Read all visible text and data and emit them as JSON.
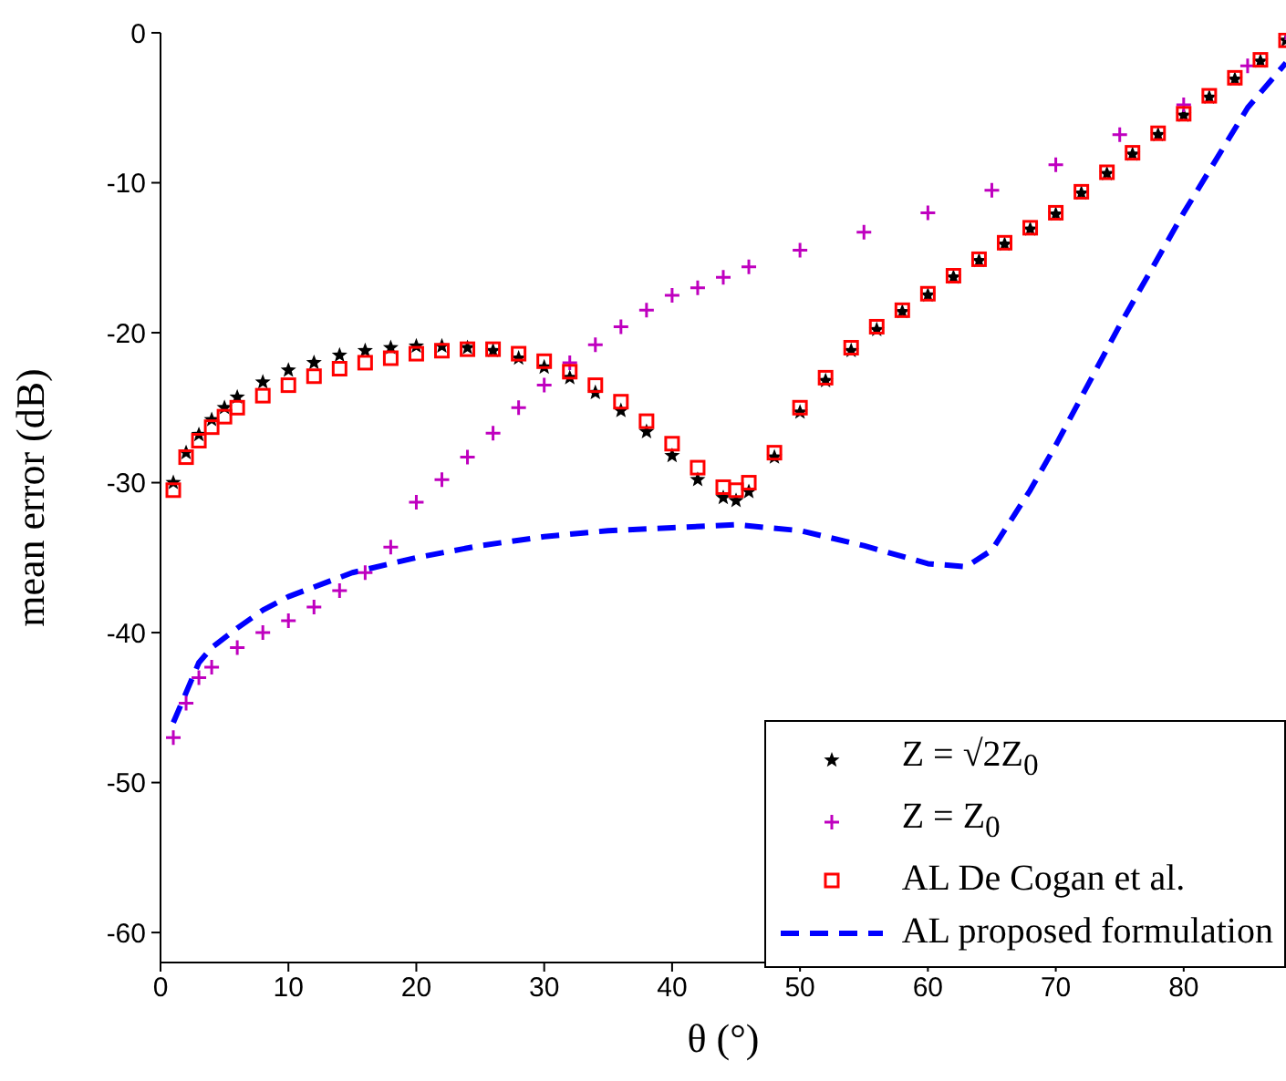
{
  "chart_data": {
    "type": "scatter",
    "xlabel": "θ (°)",
    "ylabel": "mean error (dB)",
    "xlim": [
      0,
      88
    ],
    "xticks": [
      0,
      10,
      20,
      30,
      40,
      50,
      60,
      70,
      80
    ],
    "ylim": [
      -62,
      0
    ],
    "yticks": [
      -60,
      -50,
      -40,
      -30,
      -20,
      -10,
      0
    ],
    "grid": false,
    "legend": "bottom right",
    "series": [
      {
        "name": "Z = √2Z$_{0}$",
        "marker": "star",
        "color": "#000000",
        "x": [
          1,
          2,
          3,
          4,
          5,
          6,
          8,
          10,
          12,
          14,
          16,
          18,
          20,
          22,
          24,
          26,
          28,
          30,
          32,
          34,
          36,
          38,
          40,
          42,
          44,
          45,
          46,
          48,
          50,
          52,
          54,
          56,
          58,
          60,
          62,
          64,
          66,
          68,
          70,
          72,
          74,
          76,
          78,
          80,
          82,
          84,
          86,
          88
        ],
        "values": [
          -30,
          -28,
          -26.8,
          -25.8,
          -25,
          -24.3,
          -23.3,
          -22.5,
          -22,
          -21.5,
          -21.2,
          -21,
          -20.9,
          -20.9,
          -21,
          -21.2,
          -21.7,
          -22.3,
          -23,
          -24,
          -25.2,
          -26.6,
          -28.2,
          -29.8,
          -31,
          -31.2,
          -30.6,
          -28.3,
          -25.3,
          -23.2,
          -21.2,
          -19.8,
          -18.6,
          -17.5,
          -16.3,
          -15.2,
          -14.1,
          -13.1,
          -12.1,
          -10.7,
          -9.4,
          -8.1,
          -6.8,
          -5.5,
          -4.3,
          -3.1,
          -1.9,
          -0.5
        ]
      },
      {
        "name": "Z = Z$_{0}$",
        "marker": "cross",
        "color": "#bf00bf",
        "x": [
          1,
          2,
          3,
          4,
          6,
          8,
          10,
          12,
          14,
          16,
          18,
          20,
          22,
          24,
          26,
          28,
          30,
          32,
          34,
          36,
          38,
          40,
          42,
          44,
          46,
          50,
          55,
          60,
          65,
          70,
          75,
          80,
          85,
          88
        ],
        "values": [
          -47,
          -44.7,
          -43,
          -42.3,
          -41,
          -40,
          -39.2,
          -38.3,
          -37.2,
          -36,
          -34.3,
          -31.3,
          -29.8,
          -28.3,
          -26.7,
          -25,
          -23.5,
          -22,
          -20.8,
          -19.6,
          -18.5,
          -17.5,
          -17,
          -16.3,
          -15.6,
          -14.5,
          -13.3,
          -12,
          -10.5,
          -8.8,
          -6.8,
          -4.8,
          -2.2,
          0
        ]
      },
      {
        "name": "AL De Cogan et al.",
        "marker": "square",
        "color": "#ff0000",
        "x": [
          1,
          2,
          3,
          4,
          5,
          6,
          8,
          10,
          12,
          14,
          16,
          18,
          20,
          22,
          24,
          26,
          28,
          30,
          32,
          34,
          36,
          38,
          40,
          42,
          44,
          45,
          46,
          48,
          50,
          52,
          54,
          56,
          58,
          60,
          62,
          64,
          66,
          68,
          70,
          72,
          74,
          76,
          78,
          80,
          82,
          84,
          86,
          88
        ],
        "values": [
          -30.5,
          -28.3,
          -27.2,
          -26.3,
          -25.6,
          -25,
          -24.2,
          -23.5,
          -22.9,
          -22.4,
          -22,
          -21.7,
          -21.4,
          -21.2,
          -21.1,
          -21.1,
          -21.4,
          -21.9,
          -22.6,
          -23.5,
          -24.6,
          -25.9,
          -27.4,
          -29,
          -30.3,
          -30.5,
          -30,
          -28,
          -25,
          -23,
          -21,
          -19.6,
          -18.5,
          -17.4,
          -16.2,
          -15.1,
          -14,
          -13,
          -12,
          -10.6,
          -9.3,
          -8,
          -6.7,
          -5.4,
          -4.2,
          -3,
          -1.8,
          -0.5
        ]
      },
      {
        "name": "AL proposed formulation",
        "type": "line",
        "marker": "none",
        "line_style": "dashed",
        "color": "#0000ff",
        "x": [
          1,
          2,
          3,
          4,
          6,
          8,
          10,
          15,
          20,
          25,
          30,
          35,
          40,
          45,
          50,
          55,
          60,
          63,
          65,
          68,
          70,
          75,
          80,
          85,
          88
        ],
        "values": [
          -46,
          -44,
          -42,
          -41,
          -39.7,
          -38.5,
          -37.6,
          -36,
          -35,
          -34.2,
          -33.6,
          -33.2,
          -33,
          -32.8,
          -33.2,
          -34.2,
          -35.4,
          -35.6,
          -34.5,
          -30.5,
          -27.5,
          -19.5,
          -12,
          -5,
          -2
        ]
      }
    ]
  }
}
